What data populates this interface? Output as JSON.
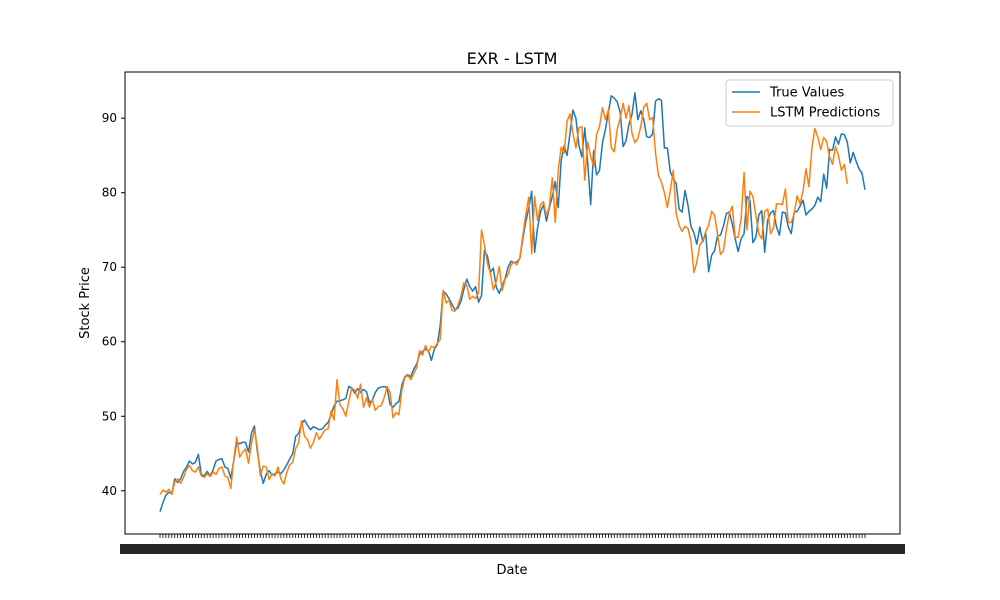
{
  "chart_data": {
    "type": "line",
    "title": "EXR - LSTM",
    "xlabel": "Date",
    "ylabel": "Stock Price",
    "ylim": [
      34.2,
      96.2
    ],
    "yticks": [
      40,
      50,
      60,
      70,
      80,
      90
    ],
    "grid": false,
    "legend_position": "top-right",
    "series": [
      {
        "name": "True Values",
        "color": "#1f77b4",
        "values": [
          37.2,
          38.4,
          39.4,
          39.8,
          39.6,
          41.6,
          41.1,
          41.6,
          42.6,
          43.2,
          44.0,
          43.6,
          43.8,
          44.9,
          42.2,
          42.0,
          42.6,
          42.0,
          42.8,
          44.0,
          44.2,
          44.3,
          43.2,
          43.0,
          41.7,
          44.0,
          46.5,
          46.3,
          46.5,
          46.5,
          45.2,
          47.7,
          48.7,
          45.3,
          42.7,
          41.0,
          42.2,
          42.7,
          42.1,
          42.3,
          42.5,
          42.3,
          42.8,
          43.5,
          44.3,
          45.0,
          47.3,
          47.7,
          49.0,
          49.5,
          48.8,
          48.2,
          48.6,
          48.4,
          48.2,
          48.3,
          48.8,
          49.2,
          50.2,
          51.4,
          52.0,
          52.1,
          52.2,
          52.4,
          54.0,
          53.8,
          53.1,
          53.7,
          53.2,
          53.6,
          53.3,
          51.8,
          52.2,
          53.2,
          53.8,
          53.9,
          54.0,
          53.8,
          51.6,
          51.2,
          51.7,
          52.0,
          54.2,
          55.3,
          55.6,
          55.3,
          56.3,
          57.0,
          58.3,
          58.7,
          59.0,
          58.8,
          57.5,
          59.0,
          59.6,
          62.2,
          66.8,
          66.4,
          65.8,
          65.0,
          64.3,
          64.5,
          65.4,
          67.0,
          68.4,
          67.4,
          66.8,
          67.4,
          65.3,
          66.2,
          72.3,
          71.5,
          69.3,
          69.9,
          67.3,
          66.5,
          67.5,
          68.5,
          70.0,
          70.8,
          70.6,
          70.7,
          71.2,
          73.8,
          76.1,
          77.9,
          80.2,
          72.0,
          75.3,
          77.4,
          78.4,
          76.2,
          78.0,
          79.5,
          81.5,
          78.0,
          84.3,
          86.3,
          85.0,
          88.0,
          91.1,
          90.0,
          86.4,
          84.8,
          88.7,
          84.0,
          78.4,
          85.6,
          82.4,
          83.0,
          86.7,
          88.5,
          90.8,
          93.0,
          92.7,
          92.2,
          90.8,
          86.2,
          87.0,
          89.2,
          90.5,
          93.4,
          89.8,
          91.0,
          89.8,
          87.5,
          87.4,
          87.9,
          92.3,
          92.6,
          92.4,
          86.0,
          86.0,
          82.8,
          81.9,
          81.2,
          77.8,
          77.4,
          80.3,
          78.3,
          75.5,
          74.6,
          73.1,
          75.4,
          73.4,
          74.6,
          69.4,
          71.6,
          72.2,
          74.2,
          74.3,
          75.5,
          77.2,
          77.4,
          75.8,
          73.8,
          72.1,
          73.8,
          74.5,
          79.5,
          79.0,
          73.3,
          74.0,
          77.0,
          77.6,
          72.0,
          76.3,
          77.3,
          77.6,
          75.4,
          74.3,
          77.4,
          77.3,
          75.4,
          74.5,
          77.4,
          77.5,
          78.2,
          79.0,
          77.0,
          77.5,
          77.8,
          78.3,
          79.4,
          78.8,
          82.5,
          80.6,
          85.8,
          85.7,
          87.5,
          86.5,
          87.9,
          87.8,
          86.8,
          84.0,
          85.4,
          84.2,
          83.2,
          82.6,
          80.4
        ]
      },
      {
        "name": "LSTM Predictions",
        "color": "#ff7f0e",
        "values": [
          39.5,
          40.1,
          39.8,
          40.2,
          39.5,
          41.2,
          41.6,
          41.0,
          41.8,
          42.9,
          43.4,
          42.7,
          42.5,
          43.2,
          42.0,
          41.8,
          42.3,
          41.9,
          42.5,
          42.2,
          43.0,
          43.2,
          42.0,
          41.8,
          40.3,
          44.2,
          47.2,
          44.5,
          45.2,
          45.6,
          43.7,
          46.3,
          48.2,
          45.8,
          42.0,
          43.3,
          43.2,
          41.5,
          42.3,
          42.0,
          43.2,
          41.6,
          40.9,
          42.5,
          43.5,
          43.8,
          45.7,
          46.4,
          49.4,
          47.3,
          46.9,
          45.7,
          46.5,
          47.8,
          46.9,
          47.6,
          48.2,
          48.3,
          50.7,
          49.5,
          54.9,
          51.5,
          51.0,
          50.0,
          52.0,
          53.8,
          53.5,
          52.4,
          54.3,
          51.2,
          52.5,
          51.2,
          52.3,
          50.8,
          51.3,
          51.4,
          52.5,
          54.0,
          53.2,
          49.8,
          50.5,
          50.2,
          53.5,
          55.2,
          55.5,
          54.9,
          55.7,
          56.5,
          58.8,
          58.2,
          59.5,
          58.6,
          59.4,
          59.2,
          59.8,
          60.3,
          66.9,
          65.2,
          65.6,
          64.2,
          64.1,
          64.9,
          66.1,
          67.9,
          67.6,
          65.7,
          66.1,
          65.8,
          66.6,
          75.0,
          73.0,
          70.5,
          69.2,
          67.0,
          68.1,
          70.1,
          66.9,
          68.4,
          69.0,
          70.3,
          70.7,
          70.3,
          71.3,
          74.2,
          77.1,
          79.4,
          71.8,
          79.5,
          76.3,
          78.4,
          78.8,
          76.9,
          78.2,
          82.0,
          76.0,
          83.0,
          86.1,
          85.3,
          89.6,
          90.6,
          87.9,
          86.0,
          88.7,
          88.9,
          81.7,
          86.8,
          84.9,
          83.5,
          87.8,
          88.9,
          91.4,
          89.8,
          91.1,
          86.0,
          85.5,
          88.5,
          90.0,
          92.0,
          90.0,
          91.7,
          88.0,
          86.7,
          87.3,
          88.9,
          91.5,
          92.0,
          89.8,
          90.1,
          85.3,
          82.3,
          81.4,
          80.0,
          78.0,
          80.3,
          83.0,
          77.2,
          75.6,
          74.8,
          75.5,
          75.2,
          73.5,
          69.3,
          70.7,
          73.0,
          73.5,
          74.8,
          75.6,
          77.5,
          77.0,
          74.5,
          71.7,
          72.2,
          75.0,
          77.2,
          78.2,
          74.0,
          74.0,
          76.5,
          82.7,
          75.0,
          80.2,
          79.5,
          77.0,
          74.5,
          73.8,
          77.5,
          77.8,
          74.5,
          75.3,
          78.5,
          78.5,
          78.4,
          80.5,
          76.0,
          76.0,
          77.2,
          79.6,
          78.5,
          80.2,
          83.2,
          80.8,
          86.0,
          88.6,
          87.5,
          85.8,
          87.4,
          86.9,
          84.8,
          83.8,
          86.2,
          85.0,
          83.0,
          83.8,
          81.2
        ]
      }
    ]
  }
}
